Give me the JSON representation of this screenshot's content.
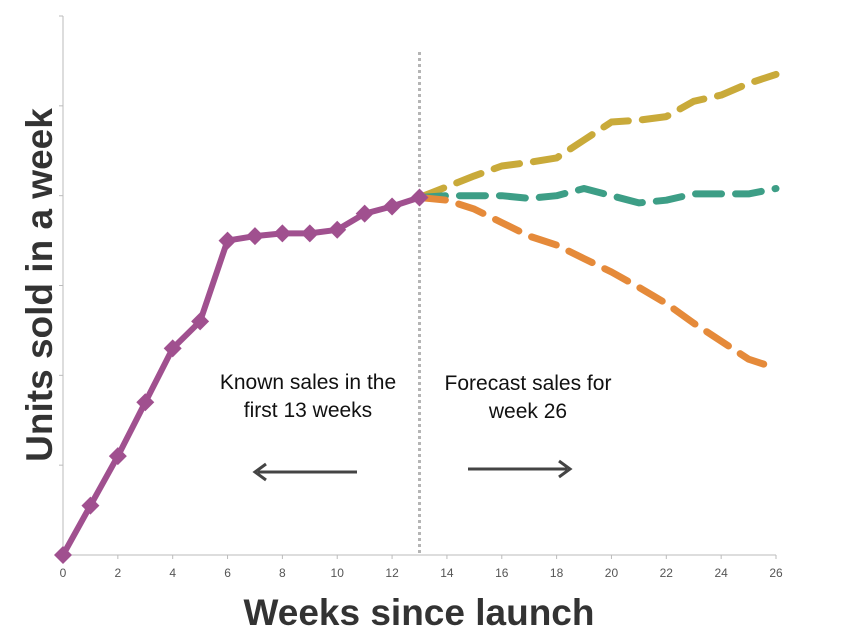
{
  "chart_data": {
    "type": "line",
    "xlabel": "Weeks since launch",
    "ylabel": "Units sold in a week",
    "xlim": [
      0,
      26
    ],
    "ylim": [
      0,
      6
    ],
    "x_ticks": [
      0,
      2,
      4,
      6,
      8,
      10,
      12,
      14,
      16,
      18,
      20,
      22,
      24,
      26
    ],
    "y_ticks": [
      0,
      1,
      2,
      3,
      4,
      5,
      6
    ],
    "show_y_tick_labels": false,
    "grid": false,
    "forecast_start_week": 13,
    "series": [
      {
        "role": "known",
        "style": "solid-markers",
        "color": "#a0508f",
        "x": [
          0,
          1,
          2,
          3,
          4,
          5,
          6,
          7,
          8,
          9,
          10,
          11,
          12,
          13
        ],
        "y": [
          0.0,
          0.55,
          1.1,
          1.7,
          2.3,
          2.6,
          3.5,
          3.55,
          3.58,
          3.58,
          3.62,
          3.8,
          3.88,
          3.98
        ]
      },
      {
        "role": "forecast",
        "style": "dashed",
        "color": "#c9aa3a",
        "x": [
          13,
          14,
          15,
          16,
          17,
          18,
          19,
          20,
          21,
          22,
          23,
          24,
          25,
          26
        ],
        "y": [
          3.98,
          4.1,
          4.22,
          4.33,
          4.37,
          4.42,
          4.62,
          4.82,
          4.84,
          4.88,
          5.05,
          5.12,
          5.25,
          5.35
        ]
      },
      {
        "role": "forecast",
        "style": "dashed",
        "color": "#3d9e86",
        "x": [
          13,
          14,
          15,
          16,
          17,
          18,
          19,
          20,
          21,
          22,
          23,
          24,
          25,
          26
        ],
        "y": [
          3.98,
          4.0,
          4.0,
          4.0,
          3.97,
          4.0,
          4.08,
          4.0,
          3.92,
          3.95,
          4.02,
          4.02,
          4.02,
          4.08
        ]
      },
      {
        "role": "forecast",
        "style": "dashed",
        "color": "#e58a3a",
        "x": [
          13,
          14,
          15,
          16,
          17,
          18,
          19,
          20,
          21,
          22,
          23,
          24,
          25,
          26
        ],
        "y": [
          3.98,
          3.95,
          3.85,
          3.7,
          3.55,
          3.45,
          3.3,
          3.15,
          2.98,
          2.8,
          2.58,
          2.38,
          2.18,
          2.08
        ]
      }
    ],
    "annotations": [
      {
        "id": "known",
        "text": "Known sales in the first 13 weeks",
        "arrow": "left"
      },
      {
        "id": "forecast",
        "text": "Forecast sales for week 26",
        "arrow": "right"
      }
    ],
    "colors": {
      "axis": "#bbbbbb",
      "divider": "#b5b5b5",
      "arrow": "#444444",
      "marker": "#a0508f"
    }
  }
}
